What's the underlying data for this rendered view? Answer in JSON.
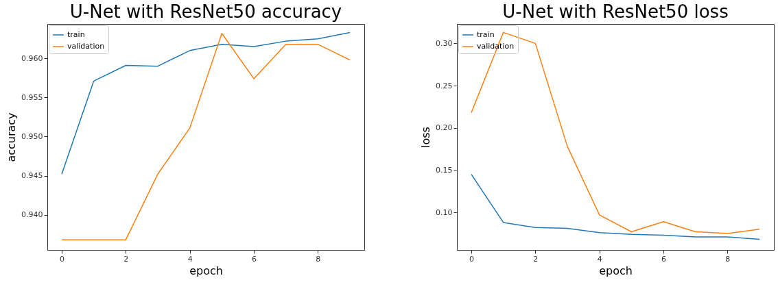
{
  "chart_data": [
    {
      "type": "line",
      "title": "U-Net with ResNet50 accuracy",
      "xlabel": "epoch",
      "ylabel": "accuracy",
      "x": [
        0,
        1,
        2,
        3,
        4,
        5,
        6,
        7,
        8,
        9
      ],
      "xlim": [
        -0.45,
        9.45
      ],
      "xticks": [
        0,
        2,
        4,
        6,
        8
      ],
      "ylim": [
        0.9355,
        0.9644
      ],
      "yticks": [
        {
          "value": 0.94,
          "label": "0.940"
        },
        {
          "value": 0.945,
          "label": "0.945"
        },
        {
          "value": 0.95,
          "label": "0.950"
        },
        {
          "value": 0.955,
          "label": "0.955"
        },
        {
          "value": 0.96,
          "label": "0.960"
        }
      ],
      "legend": "top left",
      "grid": false,
      "series": [
        {
          "name": "train",
          "color": "#1f77b4",
          "values": [
            0.9452,
            0.9571,
            0.9591,
            0.959,
            0.961,
            0.9618,
            0.9615,
            0.9622,
            0.9625,
            0.9633
          ]
        },
        {
          "name": "validation",
          "color": "#ff7f0e",
          "values": [
            0.9368,
            0.9368,
            0.9368,
            0.9452,
            0.9511,
            0.9632,
            0.9574,
            0.9618,
            0.9618,
            0.9598
          ]
        }
      ]
    },
    {
      "type": "line",
      "title": "U-Net with ResNet50 loss",
      "xlabel": "epoch",
      "ylabel": "loss",
      "x": [
        0,
        1,
        2,
        3,
        4,
        5,
        6,
        7,
        8,
        9
      ],
      "xlim": [
        -0.45,
        9.45
      ],
      "xticks": [
        0,
        2,
        4,
        6,
        8
      ],
      "ylim": [
        0.0555,
        0.323
      ],
      "yticks": [
        {
          "value": 0.1,
          "label": "0.10"
        },
        {
          "value": 0.15,
          "label": "0.15"
        },
        {
          "value": 0.2,
          "label": "0.20"
        },
        {
          "value": 0.25,
          "label": "0.25"
        },
        {
          "value": 0.3,
          "label": "0.30"
        }
      ],
      "legend": "top left",
      "grid": false,
      "series": [
        {
          "name": "train",
          "color": "#1f77b4",
          "values": [
            0.145,
            0.088,
            0.082,
            0.081,
            0.076,
            0.074,
            0.073,
            0.071,
            0.071,
            0.068
          ]
        },
        {
          "name": "validation",
          "color": "#ff7f0e",
          "values": [
            0.218,
            0.313,
            0.3,
            0.178,
            0.097,
            0.077,
            0.089,
            0.077,
            0.075,
            0.08
          ]
        }
      ]
    }
  ]
}
